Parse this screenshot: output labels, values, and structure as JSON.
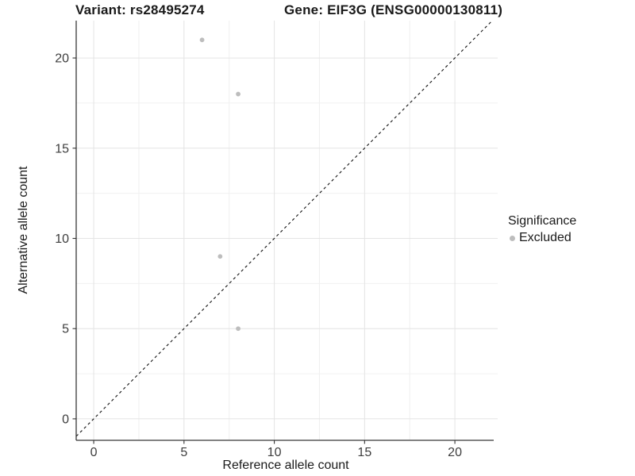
{
  "titles": {
    "variant": "Variant: rs28495274",
    "gene": "Gene: EIF3G (ENSG00000130811)"
  },
  "chart_data": {
    "type": "scatter",
    "title": "Variant: rs28495274  /  Gene: EIF3G (ENSG00000130811)",
    "xlabel": "Reference allele count",
    "ylabel": "Alternative allele count",
    "xlim": [
      -0.97,
      22.37
    ],
    "ylim": [
      -1.19,
      22.07
    ],
    "x_ticks": [
      0,
      5,
      10,
      15,
      20
    ],
    "y_ticks": [
      0,
      5,
      10,
      15,
      20
    ],
    "x_minor_ticks": [
      2.5,
      7.5,
      12.5,
      17.5,
      22.5
    ],
    "y_minor_ticks": [
      2.5,
      7.5,
      12.5,
      17.5
    ],
    "grid": true,
    "series": [
      {
        "name": "Excluded",
        "color": "#bdbdbd",
        "points": [
          {
            "x": 6,
            "y": 21
          },
          {
            "x": 8,
            "y": 18
          },
          {
            "x": 7,
            "y": 9
          },
          {
            "x": 8,
            "y": 5
          }
        ]
      }
    ],
    "reference_line": {
      "kind": "identity",
      "equation": "y = x",
      "style": "dashed",
      "color": "#111111"
    },
    "legend": {
      "title": "Significance",
      "position": "right",
      "items": [
        {
          "label": "Excluded",
          "color": "#bdbdbd",
          "marker": "circle-icon"
        }
      ]
    },
    "colors": {
      "background": "#ffffff",
      "grid_major": "#e4e4e4",
      "grid_minor": "#f0f0f0",
      "axis_line": "#383838",
      "tick_mark": "#333333",
      "tick_label": "#3d3d3d",
      "point": "#bdbdbd"
    }
  }
}
